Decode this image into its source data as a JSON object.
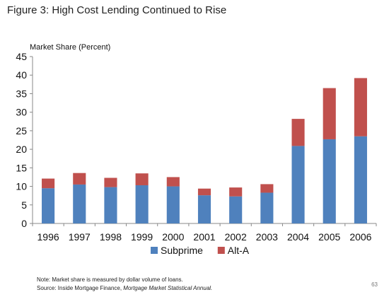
{
  "figure": {
    "title": "Figure 3: High Cost Lending Continued to Rise",
    "note": "Note: Market share is measured by dollar volume of loans.",
    "source_prefix": "Source: Inside Mortgage Finance, ",
    "source_italic": "Mortgage Market Statistical Annual.",
    "page_number": "63"
  },
  "chart_data": {
    "type": "bar",
    "stacked": true,
    "title": "Figure 3: High Cost Lending Continued to Rise",
    "xlabel": "",
    "ylabel": "Market Share (Percent)",
    "ylim": [
      0,
      45
    ],
    "yticks": [
      0,
      5,
      10,
      15,
      20,
      25,
      30,
      35,
      40,
      45
    ],
    "grid": false,
    "legend": "bottom",
    "categories": [
      "1996",
      "1997",
      "1998",
      "1999",
      "2000",
      "2001",
      "2002",
      "2003",
      "2004",
      "2005",
      "2006"
    ],
    "series": [
      {
        "name": "Subprime",
        "color": "#4F81BD",
        "values": [
          9.5,
          10.5,
          9.8,
          10.3,
          10.0,
          7.6,
          7.3,
          8.3,
          20.9,
          22.7,
          23.5
        ]
      },
      {
        "name": "Alt-A",
        "color": "#C0504D",
        "values": [
          2.6,
          3.1,
          2.5,
          3.2,
          2.5,
          1.8,
          2.4,
          2.3,
          7.3,
          13.8,
          15.7
        ]
      }
    ]
  }
}
